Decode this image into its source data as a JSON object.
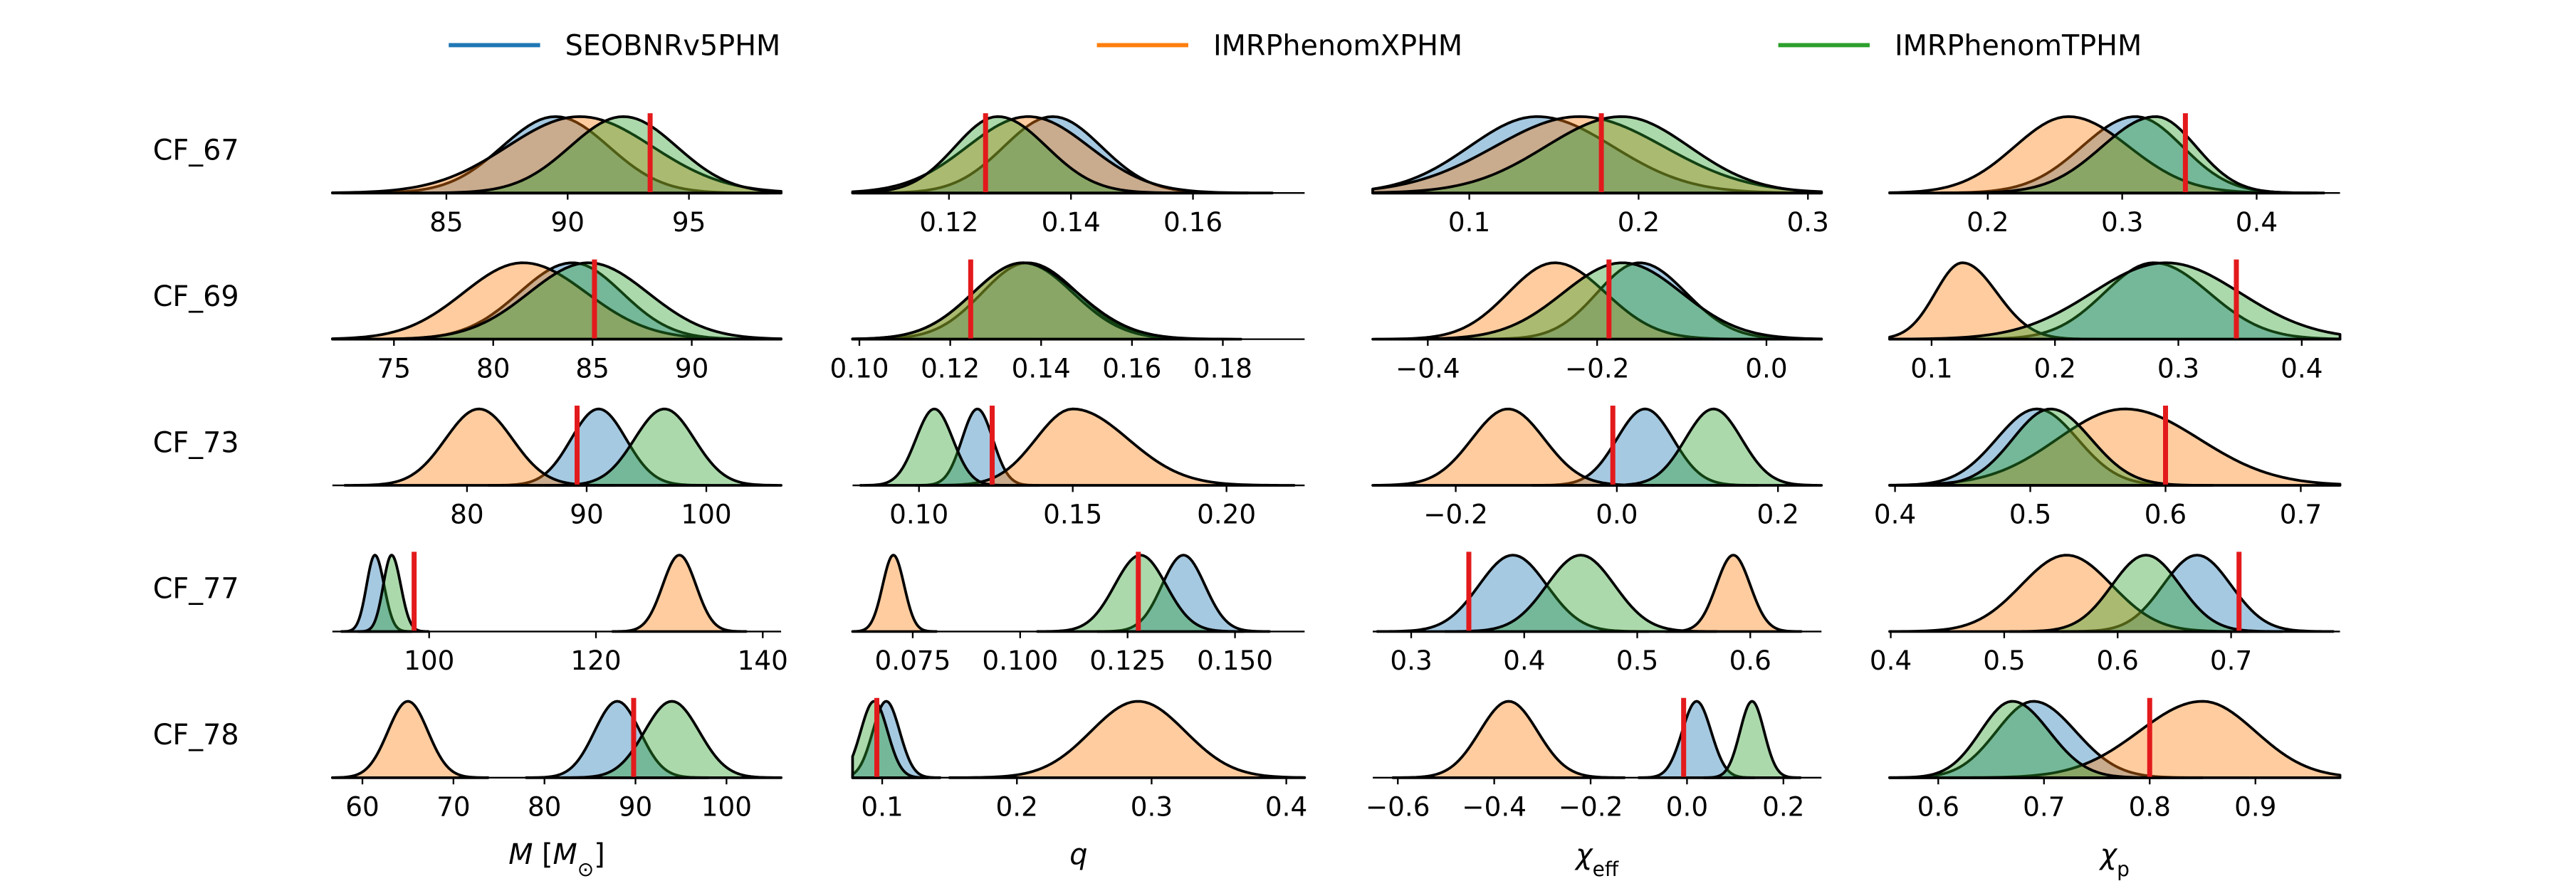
{
  "chart_data": {
    "type": "ridgeline",
    "series": [
      {
        "name": "SEOBNRv5PHM",
        "color": "#1f77b4"
      },
      {
        "name": "IMRPhenomXPHM",
        "color": "#ff7f0e"
      },
      {
        "name": "IMRPhenomTPHM",
        "color": "#2ca02c"
      }
    ],
    "marker_color": "#e31a1c",
    "columns": [
      {
        "xlabel": [
          {
            "text": "M",
            "italic": true
          },
          {
            "text": " ["
          },
          {
            "text": "M",
            "italic": true
          },
          {
            "text": "⊙",
            "sub": true
          },
          {
            "text": "]"
          }
        ]
      },
      {
        "xlabel": [
          {
            "text": "q",
            "italic": true
          }
        ]
      },
      {
        "xlabel": [
          {
            "text": "χ",
            "italic": true
          },
          {
            "text": "eff",
            "sub": true
          }
        ]
      },
      {
        "xlabel": [
          {
            "text": "χ",
            "italic": true
          },
          {
            "text": "p",
            "sub": true
          }
        ]
      }
    ],
    "rows": [
      {
        "label": "CF_67",
        "panels": [
          {
            "xlim": [
              80.3,
              98.8
            ],
            "xticks": [
              85,
              90,
              95
            ],
            "distributions": [
              {
                "peak": 89.5,
                "spread": [
                  2.2,
                  2.2
                ]
              },
              {
                "peak": 90.5,
                "spread": [
                  3,
                  3
                ]
              },
              {
                "peak": 92.3,
                "spread": [
                  2.2,
                  2.2
                ]
              }
            ],
            "injected": 93.4
          },
          {
            "xlim": [
              0.1042,
              0.1783
            ],
            "xticks": [
              0.12,
              0.14,
              0.16
            ],
            "distributions": [
              {
                "peak": 0.137,
                "spread": [
                  0.008,
                  0.008
                ]
              },
              {
                "peak": 0.133,
                "spread": [
                  0.01,
                  0.01
                ]
              },
              {
                "peak": 0.128,
                "spread": [
                  0.007,
                  0.008
                ]
              }
            ],
            "injected": 0.126
          },
          {
            "xlim": [
              0.043,
              0.308
            ],
            "xticks": [
              0.1,
              0.2,
              0.3
            ],
            "distributions": [
              {
                "peak": 0.14,
                "spread": [
                  0.04,
                  0.045
                ]
              },
              {
                "peak": 0.165,
                "spread": [
                  0.05,
                  0.05
                ]
              },
              {
                "peak": 0.19,
                "spread": [
                  0.045,
                  0.04
                ]
              }
            ],
            "injected": 0.178
          },
          {
            "xlim": [
              0.127,
              0.462
            ],
            "xticks": [
              0.2,
              0.3,
              0.4
            ],
            "distributions": [
              {
                "peak": 0.31,
                "spread": [
                  0.04,
                  0.035
                ]
              },
              {
                "peak": 0.26,
                "spread": [
                  0.04,
                  0.045
                ]
              },
              {
                "peak": 0.325,
                "spread": [
                  0.04,
                  0.03
                ]
              }
            ],
            "injected": 0.347
          }
        ]
      },
      {
        "label": "CF_69",
        "panels": [
          {
            "xlim": [
              71.9,
              94.5
            ],
            "xticks": [
              75,
              80,
              85,
              90
            ],
            "distributions": [
              {
                "peak": 84,
                "spread": [
                  2.7,
                  2.5
                ]
              },
              {
                "peak": 81.5,
                "spread": [
                  3,
                  3.2
                ]
              },
              {
                "peak": 84.8,
                "spread": [
                  3,
                  3
                ]
              }
            ],
            "injected": 85.1
          },
          {
            "xlim": [
              0.0985,
              0.198
            ],
            "xticks": [
              {
                "value": 0.1,
                "label": "0.10"
              },
              0.12,
              0.14,
              0.16,
              0.18
            ],
            "distributions": [
              {
                "peak": 0.137,
                "spread": [
                  0.01,
                  0.011
                ]
              },
              {
                "peak": 0.136,
                "spread": [
                  0.011,
                  0.011
                ]
              },
              {
                "peak": 0.136,
                "spread": [
                  0.011,
                  0.012
                ]
              }
            ],
            "injected": 0.1245
          },
          {
            "xlim": [
              -0.465,
              0.065
            ],
            "xticks": [
              {
                "value": -0.4,
                "label": "−0.4"
              },
              {
                "value": -0.2,
                "label": "−0.2"
              },
              {
                "value": 0,
                "label": "0.0"
              }
            ],
            "distributions": [
              {
                "peak": -0.15,
                "spread": [
                  0.05,
                  0.055
                ]
              },
              {
                "peak": -0.25,
                "spread": [
                  0.055,
                  0.06
                ]
              },
              {
                "peak": -0.17,
                "spread": [
                  0.07,
                  0.07
                ]
              }
            ],
            "injected": -0.186
          },
          {
            "xlim": [
              0.066,
              0.431
            ],
            "xticks": [
              0.1,
              0.2,
              0.3,
              0.4
            ],
            "distributions": [
              {
                "peak": 0.28,
                "spread": [
                  0.04,
                  0.045
                ]
              },
              {
                "peak": 0.125,
                "spread": [
                  0.022,
                  0.028
                ]
              },
              {
                "peak": 0.29,
                "spread": [
                  0.06,
                  0.06
                ]
              }
            ],
            "injected": 0.347
          }
        ]
      },
      {
        "label": "CF_73",
        "panels": [
          {
            "xlim": [
              68.75,
              106.25
            ],
            "xticks": [
              80,
              90,
              100
            ],
            "distributions": [
              {
                "peak": 91,
                "spread": [
                  2.3,
                  2.3
                ]
              },
              {
                "peak": 81,
                "spread": [
                  2.8,
                  2.8
                ]
              },
              {
                "peak": 96.5,
                "spread": [
                  2.5,
                  2.5
                ]
              }
            ],
            "injected": 89.2
          },
          {
            "xlim": [
              0.0784,
              0.2254
            ],
            "xticks": [
              {
                "value": 0.1,
                "label": "0.10"
              },
              0.15,
              {
                "value": 0.2,
                "label": "0.20"
              }
            ],
            "distributions": [
              {
                "peak": 0.119,
                "spread": [
                  0.005,
                  0.005
                ]
              },
              {
                "peak": 0.15,
                "spread": [
                  0.012,
                  0.018
                ]
              },
              {
                "peak": 0.105,
                "spread": [
                  0.006,
                  0.006
                ]
              }
            ],
            "injected": 0.1238
          },
          {
            "xlim": [
              -0.303,
              0.254
            ],
            "xticks": [
              {
                "value": -0.2,
                "label": "−0.2"
              },
              {
                "value": 0,
                "label": "0.0"
              },
              0.2
            ],
            "distributions": [
              {
                "peak": 0.035,
                "spread": [
                  0.035,
                  0.035
                ]
              },
              {
                "peak": -0.135,
                "spread": [
                  0.045,
                  0.045
                ]
              },
              {
                "peak": 0.12,
                "spread": [
                  0.035,
                  0.035
                ]
              }
            ],
            "injected": -0.005
          },
          {
            "xlim": [
              0.396,
              0.729
            ],
            "xticks": [
              0.4,
              0.5,
              0.6,
              0.7
            ],
            "distributions": [
              {
                "peak": 0.505,
                "spread": [
                  0.03,
                  0.03
                ]
              },
              {
                "peak": 0.57,
                "spread": [
                  0.05,
                  0.055
                ]
              },
              {
                "peak": 0.515,
                "spread": [
                  0.028,
                  0.03
                ]
              }
            ],
            "injected": 0.6
          }
        ]
      },
      {
        "label": "CF_77",
        "panels": [
          {
            "xlim": [
              88.4,
              142.2
            ],
            "xticks": [
              100,
              120,
              140
            ],
            "distributions": [
              {
                "peak": 93.5,
                "spread": [
                  1,
                  1.1
                ]
              },
              {
                "peak": 130,
                "spread": [
                  2,
                  2
                ]
              },
              {
                "peak": 95.5,
                "spread": [
                  1,
                  1.1
                ]
              }
            ],
            "injected": 98.2
          },
          {
            "xlim": [
              0.061,
              0.1662
            ],
            "xticks": [
              0.075,
              {
                "value": 0.1,
                "label": "0.100"
              },
              0.125,
              {
                "value": 0.15,
                "label": "0.150"
              }
            ],
            "distributions": [
              {
                "peak": 0.138,
                "spread": [
                  0.005,
                  0.005
                ]
              },
              {
                "peak": 0.0705,
                "spread": [
                  0.0025,
                  0.0025
                ]
              },
              {
                "peak": 0.128,
                "spread": [
                  0.006,
                  0.006
                ]
              }
            ],
            "injected": 0.1275
          },
          {
            "xlim": [
              0.266,
              0.663
            ],
            "xticks": [
              0.3,
              0.4,
              0.5,
              0.6
            ],
            "distributions": [
              {
                "peak": 0.39,
                "spread": [
                  0.03,
                  0.03
                ]
              },
              {
                "peak": 0.585,
                "spread": [
                  0.015,
                  0.015
                ]
              },
              {
                "peak": 0.45,
                "spread": [
                  0.03,
                  0.03
                ]
              }
            ],
            "injected": 0.351
          },
          {
            "xlim": [
              0.399,
              0.796
            ],
            "xticks": [
              0.4,
              0.5,
              0.6,
              0.7
            ],
            "distributions": [
              {
                "peak": 0.67,
                "spread": [
                  0.03,
                  0.03
                ]
              },
              {
                "peak": 0.555,
                "spread": [
                  0.04,
                  0.04
                ]
              },
              {
                "peak": 0.625,
                "spread": [
                  0.03,
                  0.03
                ]
              }
            ],
            "injected": 0.707
          }
        ]
      },
      {
        "label": "CF_78",
        "panels": [
          {
            "xlim": [
              56.7,
              106
            ],
            "xticks": [
              60,
              70,
              80,
              90,
              100
            ],
            "distributions": [
              {
                "peak": 88,
                "spread": [
                  2.5,
                  2.5
                ]
              },
              {
                "peak": 65,
                "spread": [
                  2.2,
                  2.2
                ]
              },
              {
                "peak": 94,
                "spread": [
                  3,
                  3
                ]
              }
            ],
            "injected": 89.8
          },
          {
            "xlim": [
              0.078,
              0.4136
            ],
            "xticks": [
              0.1,
              0.2,
              0.3,
              0.4
            ],
            "distributions": [
              {
                "peak": 0.103,
                "spread": [
                  0.01,
                  0.01
                ]
              },
              {
                "peak": 0.29,
                "spread": [
                  0.035,
                  0.035
                ]
              },
              {
                "peak": 0.094,
                "spread": [
                  0.01,
                  0.01
                ]
              }
            ],
            "injected": 0.096
          },
          {
            "xlim": [
              -0.652,
              0.279
            ],
            "xticks": [
              {
                "value": -0.6,
                "label": "−0.6"
              },
              {
                "value": -0.4,
                "label": "−0.4"
              },
              {
                "value": -0.2,
                "label": "−0.2"
              },
              {
                "value": 0,
                "label": "0.0"
              },
              0.2
            ],
            "distributions": [
              {
                "peak": 0.02,
                "spread": [
                  0.03,
                  0.03
                ]
              },
              {
                "peak": -0.37,
                "spread": [
                  0.06,
                  0.06
                ]
              },
              {
                "peak": 0.135,
                "spread": [
                  0.025,
                  0.025
                ]
              }
            ],
            "injected": -0.007
          },
          {
            "xlim": [
              0.554,
              0.98
            ],
            "xticks": [
              0.6,
              0.7,
              0.8,
              0.9
            ],
            "distributions": [
              {
                "peak": 0.69,
                "spread": [
                  0.035,
                  0.04
                ]
              },
              {
                "peak": 0.85,
                "spread": [
                  0.06,
                  0.05
                ]
              },
              {
                "peak": 0.67,
                "spread": [
                  0.03,
                  0.035
                ]
              }
            ],
            "injected": 0.8
          }
        ]
      }
    ]
  }
}
